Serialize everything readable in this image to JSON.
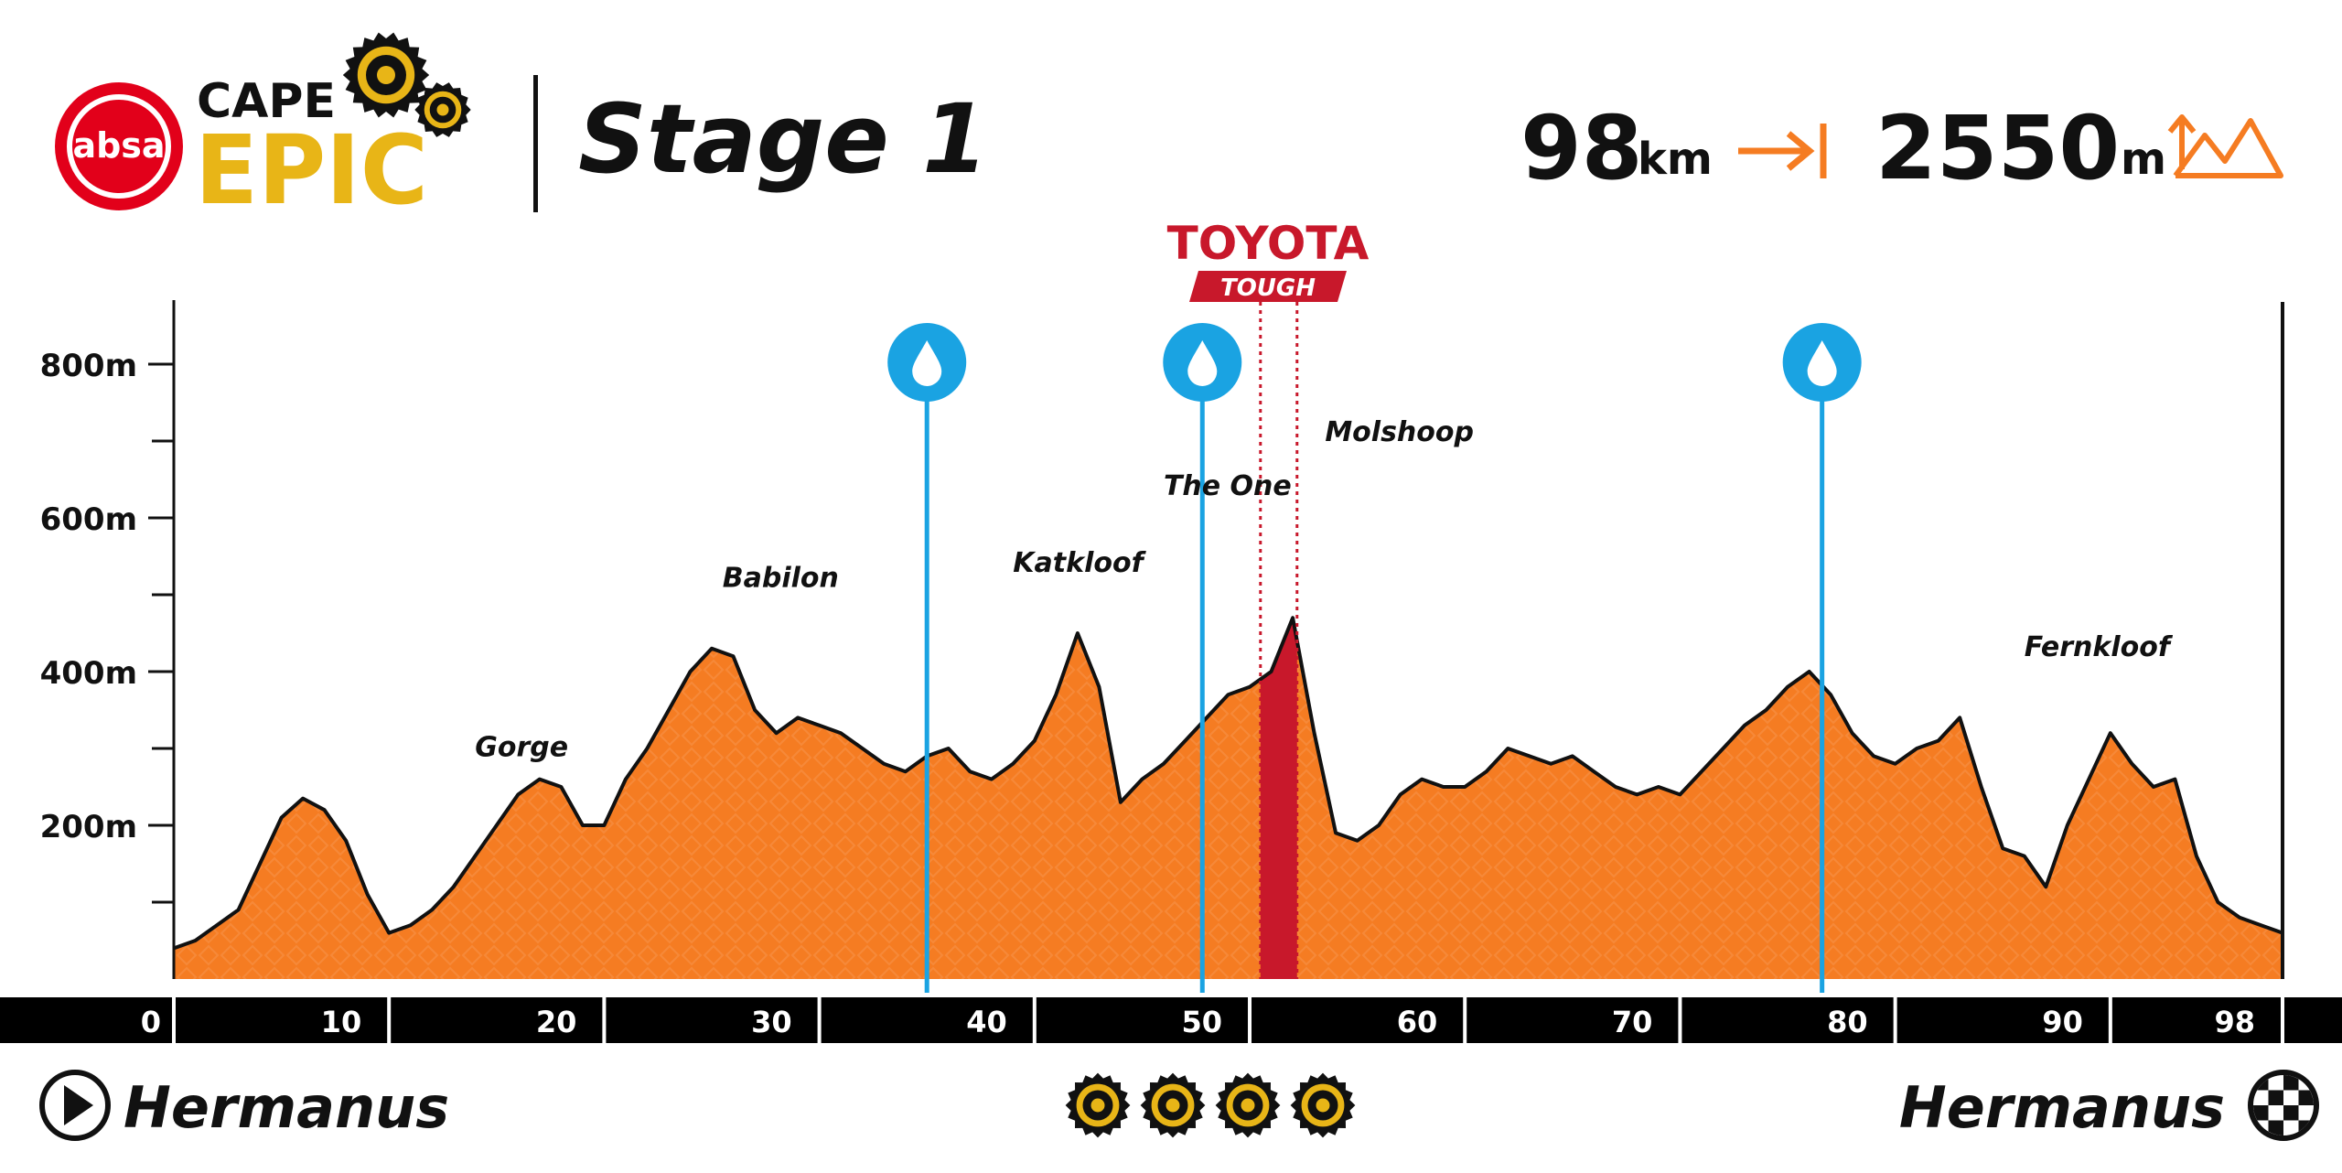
{
  "header": {
    "logo_absa": "absa",
    "logo_cape": "CAPE",
    "logo_epic": "EPIC",
    "stage_title": "Stage 1",
    "distance_value": "98",
    "distance_unit": "km",
    "elevation_value": "2550",
    "elevation_unit": "m"
  },
  "sponsor": {
    "brand": "TOYOTA",
    "tag": "TOUGH"
  },
  "footer": {
    "start_town": "Hermanus",
    "finish_town": "Hermanus",
    "difficulty_rating": 4
  },
  "colors": {
    "profile_fill": "#f57c22",
    "tough_fill": "#c8182b",
    "water_marker": "#1aa3e2",
    "logo_red": "#e2001a",
    "logo_gold": "#e8b517",
    "accent_orange": "#f57c22"
  },
  "chart_data": {
    "type": "area",
    "xlabel": "",
    "ylabel": "",
    "xlim": [
      0,
      98
    ],
    "ylim": [
      0,
      860
    ],
    "y_ticks": [
      200,
      400,
      600,
      800
    ],
    "y_tick_labels": [
      "200m",
      "400m",
      "600m",
      "800m"
    ],
    "x_ticks": [
      0,
      10,
      20,
      30,
      40,
      50,
      60,
      70,
      80,
      90,
      98
    ],
    "x_tick_labels": [
      "0",
      "10",
      "20",
      "30",
      "40",
      "50",
      "60",
      "70",
      "80",
      "90",
      "98"
    ],
    "profile": {
      "x": [
        0,
        1,
        2,
        3,
        4,
        5,
        6,
        7,
        8,
        9,
        10,
        11,
        12,
        13,
        14,
        15,
        16,
        17,
        18,
        19,
        20,
        21,
        22,
        23,
        24,
        25,
        26,
        27,
        28,
        29,
        30,
        31,
        32,
        33,
        34,
        35,
        36,
        37,
        38,
        39,
        40,
        41,
        42,
        43,
        44,
        45,
        46,
        47,
        48,
        49,
        50,
        51,
        52,
        53,
        54,
        55,
        56,
        57,
        58,
        59,
        60,
        61,
        62,
        63,
        64,
        65,
        66,
        67,
        68,
        69,
        70,
        71,
        72,
        73,
        74,
        75,
        76,
        77,
        78,
        79,
        80,
        81,
        82,
        83,
        84,
        85,
        86,
        87,
        88,
        89,
        90,
        91,
        92,
        93,
        94,
        95,
        96,
        97,
        98
      ],
      "y": [
        40,
        50,
        70,
        90,
        150,
        210,
        235,
        220,
        180,
        110,
        60,
        70,
        90,
        120,
        160,
        200,
        240,
        260,
        250,
        200,
        200,
        260,
        300,
        350,
        400,
        430,
        420,
        350,
        320,
        340,
        330,
        320,
        300,
        280,
        270,
        290,
        300,
        270,
        260,
        280,
        310,
        370,
        450,
        380,
        230,
        260,
        280,
        310,
        340,
        370,
        380,
        400,
        470,
        320,
        190,
        180,
        200,
        240,
        260,
        250,
        250,
        270,
        300,
        290,
        280,
        290,
        270,
        250,
        240,
        250,
        240,
        270,
        300,
        330,
        350,
        380,
        400,
        370,
        320,
        290,
        280,
        300,
        310,
        340,
        250,
        170,
        160,
        120,
        200,
        260,
        320,
        280,
        250,
        260,
        160,
        100,
        80,
        70,
        60
      ]
    },
    "tough_section": {
      "x_start": 50.5,
      "x_end": 52.2
    },
    "water_points_km": [
      35,
      47.8,
      76.6
    ],
    "climbs": [
      {
        "name": "Gorge",
        "km": 14,
        "elevation": 290
      },
      {
        "name": "Babilon",
        "km": 25.5,
        "elevation": 510
      },
      {
        "name": "Katkloof",
        "km": 39,
        "elevation": 530
      },
      {
        "name": "The One",
        "km": 46,
        "elevation": 630
      },
      {
        "name": "Molshoop",
        "km": 53.5,
        "elevation": 700
      },
      {
        "name": "Fernkloof",
        "km": 86,
        "elevation": 420
      }
    ]
  }
}
